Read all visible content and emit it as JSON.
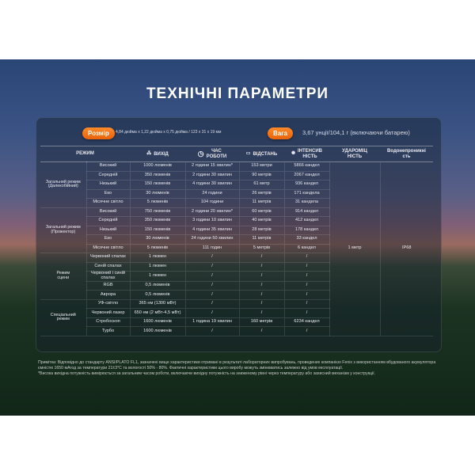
{
  "title": "ТЕХНІЧНІ ПАРАМЕТРИ",
  "size": {
    "label": "Розмір",
    "value": "4,84 дюйма x 1,22 дюйма x 0,75 дюйма / 123 x 31 x 19 мм"
  },
  "weight": {
    "label": "Вага",
    "value": "3,67 унції/104,1 г (включаючи батарею)"
  },
  "headers": {
    "mode": "РЕЖИМ",
    "output": "ВИХІД",
    "runtime": "ЧАС\nРОБОТИ",
    "distance": "ВІДСТАНЬ",
    "intensity": "ІНТЕНСИВ\nНІСТЬ",
    "impact": "УДАРОМІЦ\nНІСТЬ",
    "water": "Водонепроникні\nсть"
  },
  "icons": {
    "output": "light-rays-icon",
    "runtime": "clock-icon",
    "distance": "flashlight-beam-icon",
    "intensity": "star-burst-icon"
  },
  "impact_value": "1 метр",
  "water_value": "IP68",
  "groups": [
    {
      "label": "Загальний режим\n(Далекобійний)",
      "rows": [
        [
          "Високий",
          "1000 люменів",
          "2 години 15 хвилин*",
          "153 метри",
          "5866 кандел"
        ],
        [
          "Середній",
          "350 люменів",
          "2 години 30 хвилин",
          "90 метрів",
          "2067 кандел"
        ],
        [
          "Низький",
          "150 люменів",
          "4 години 30 хвилин",
          "61 метр",
          "936 кандел"
        ],
        [
          "Еко",
          "30 люменів",
          "24 години",
          "26 метрів",
          "171 кандела"
        ],
        [
          "Місячне світло",
          "5 люменів",
          "104 години",
          "11 метрів",
          "31 кандела"
        ]
      ]
    },
    {
      "label": "Загальний режим\n(Прожектор)",
      "rows": [
        [
          "Високий",
          "750 люменів",
          "2 години 20 хвилин*",
          "60 метрів",
          "914 кандел"
        ],
        [
          "Середній",
          "350 люменів",
          "3 години 10 хвилин",
          "40 метрів",
          "412 кандел"
        ],
        [
          "Низький",
          "150 люменів",
          "4 години 35 хвилин",
          "28 метрів",
          "178 кандел"
        ],
        [
          "Еко",
          "30 люменів",
          "24 години 50 хвилин",
          "11 метрів",
          "33 кандел"
        ],
        [
          "Місячне світло",
          "5 люменів",
          "111 годин",
          "5 метрів",
          "6 кандел"
        ]
      ]
    },
    {
      "label": "Режим\nсцени",
      "rows": [
        [
          "Червоний спалах",
          "1 люмен",
          "/",
          "/",
          "/"
        ],
        [
          "Синій спалах",
          "1 люмен",
          "/",
          "/",
          "/"
        ],
        [
          "Червоний і синій\nспалах",
          "1 люмен",
          "/",
          "/",
          "/"
        ],
        [
          "RGB",
          "0,5 люменів",
          "/",
          "/",
          "/"
        ],
        [
          "Аврора",
          "0,5 люменів",
          "/",
          "/",
          "/"
        ]
      ]
    },
    {
      "label": "Спеціальний\nрежим",
      "rows": [
        [
          "УФ-світло",
          "365 нм (1300 мВт)",
          "/",
          "/",
          "/"
        ],
        [
          "Червоний лазер",
          "650 нм (2 мВт-4,5 мВт)",
          "/",
          "/",
          "/"
        ],
        [
          "Стробоскоп",
          "1600 люменів",
          "1 година 19 хвилин",
          "160 метрів",
          "6234 кандел"
        ],
        [
          "Турбо",
          "1600 люменів",
          "/",
          "/",
          "/"
        ]
      ]
    }
  ],
  "notes": [
    "Примітка: Відповідно до стандарту ANSI/PLATO FL1, зазначені вище характеристики отримані в результаті лабораторних випробувань, проведених компанією Fenix з використанням вбудованого акумулятора ємністю 1650 мАгод за температури 21±3°C та вологості 50% - 80%. Фактичні характеристики цього виробу можуть змінюватись залежно від умов експлуатації.",
    "*Висока вихідна потужність вимірюється за загальним часом роботи, включаючи вихідну потужність на зниженому рівні через температуру або захисний механізм у конструкції."
  ]
}
